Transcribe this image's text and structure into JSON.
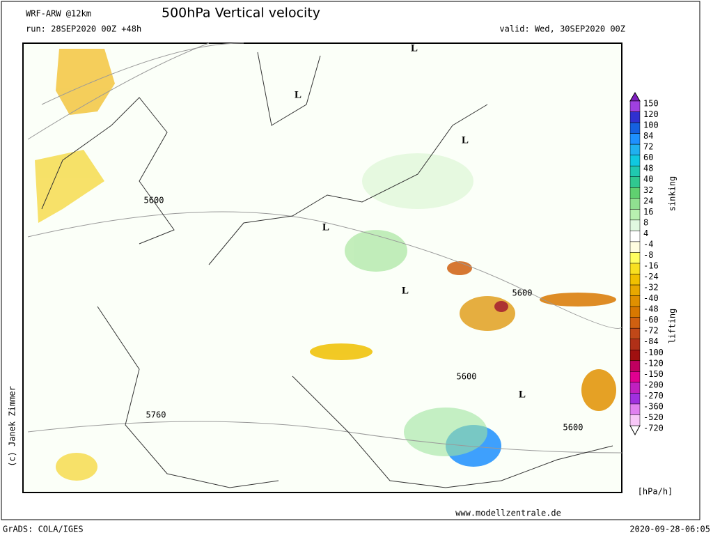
{
  "header": {
    "model": "WRF-ARW @12km",
    "title": "500hPa Vertical velocity",
    "run": "run: 28SEP2020 00Z +48h",
    "valid": "valid: Wed, 30SEP2020 00Z"
  },
  "map": {
    "contour_labels": [
      "5600",
      "5600",
      "5600",
      "5600",
      "5760"
    ],
    "lows": [
      "L",
      "L",
      "L",
      "L",
      "L",
      "L"
    ]
  },
  "colorbar": {
    "labels": [
      150,
      120,
      100,
      84,
      72,
      60,
      48,
      40,
      32,
      24,
      16,
      8,
      4,
      -4,
      -8,
      -16,
      -24,
      -32,
      -40,
      -48,
      -60,
      -72,
      -84,
      -100,
      -120,
      -150,
      -200,
      -270,
      -360,
      -520,
      -720
    ],
    "colors": [
      "#a040e0",
      "#3030d0",
      "#1560e0",
      "#1e90ff",
      "#20b0f0",
      "#10c8e0",
      "#20c8b0",
      "#30c890",
      "#60d070",
      "#90e090",
      "#b8f0b0",
      "#e0f8e0",
      "#ffffff",
      "#fffde0",
      "#ffff60",
      "#f8e020",
      "#f0c000",
      "#e8a800",
      "#e09000",
      "#d87800",
      "#d06010",
      "#c04818",
      "#b03018",
      "#a01010",
      "#c00060",
      "#e00090",
      "#c020c0",
      "#a030e0",
      "#e080f0",
      "#f8c8f8"
    ],
    "top_label": "sinking",
    "bottom_label": "lifting",
    "unit": "[hPa/h]"
  },
  "footer": {
    "copyright": "(c) Janek Zimmer",
    "website": "www.modellzentrale.de",
    "software": "GrADS: COLA/IGES",
    "timestamp": "2020-09-28-06:05"
  }
}
